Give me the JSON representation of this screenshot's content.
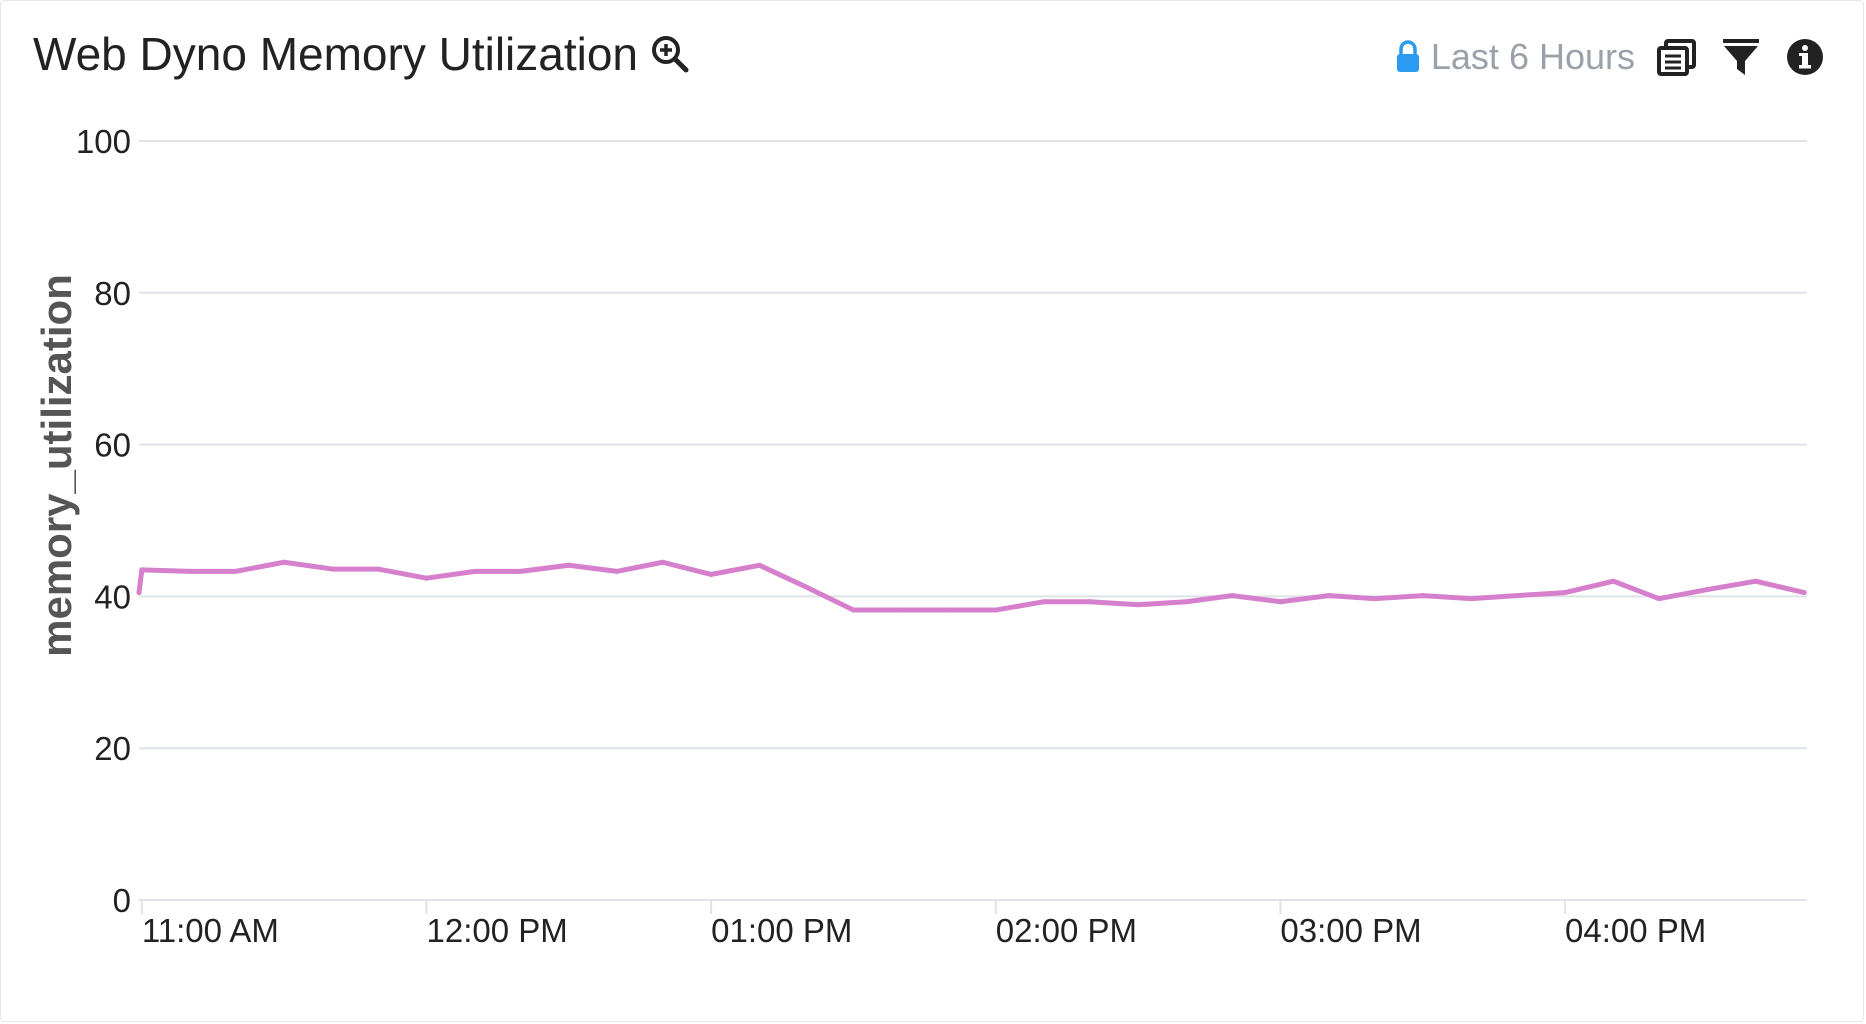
{
  "header": {
    "title": "Web Dyno Memory Utilization",
    "time_range": "Last 6 Hours"
  },
  "icons": {
    "zoom": "zoom-in-icon",
    "lock": "lock-icon",
    "copy": "copy-icon",
    "filter": "filter-icon",
    "info": "info-icon"
  },
  "colors": {
    "series": "#d67fcc",
    "lock": "#2b9af3",
    "grid": "#dfe3e8"
  },
  "chart_data": {
    "type": "line",
    "title": "Web Dyno Memory Utilization",
    "ylabel": "memory_utilization",
    "xlabel": "",
    "ylim": [
      0,
      100
    ],
    "yticks": [
      0,
      20,
      40,
      60,
      80,
      100
    ],
    "xticks": [
      "11:00 AM",
      "12:00 PM",
      "01:00 PM",
      "02:00 PM",
      "03:00 PM",
      "04:00 PM"
    ],
    "xlim_hours": [
      10.99,
      16.85
    ],
    "grid": true,
    "series": [
      {
        "x": [
          10.99,
          11.0,
          11.17,
          11.33,
          11.5,
          11.67,
          11.83,
          12.0,
          12.17,
          12.33,
          12.5,
          12.67,
          12.83,
          13.0,
          13.17,
          13.33,
          13.5,
          13.67,
          13.83,
          14.0,
          14.17,
          14.33,
          14.5,
          14.67,
          14.83,
          15.0,
          15.17,
          15.33,
          15.5,
          15.67,
          15.83,
          16.0,
          16.17,
          16.33,
          16.5,
          16.67,
          16.84
        ],
        "y": [
          40.5,
          43.5,
          43.3,
          43.3,
          44.5,
          43.6,
          43.6,
          42.4,
          43.3,
          43.3,
          44.1,
          43.3,
          44.5,
          42.9,
          44.1,
          41.3,
          38.2,
          38.2,
          38.2,
          38.2,
          39.3,
          39.3,
          38.9,
          39.3,
          40.1,
          39.3,
          40.1,
          39.7,
          40.1,
          39.7,
          40.1,
          40.5,
          42.0,
          39.7,
          40.9,
          42.0,
          40.5
        ]
      }
    ]
  }
}
